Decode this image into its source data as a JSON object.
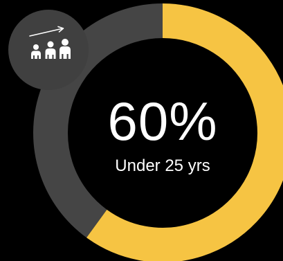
{
  "chart_data": {
    "type": "pie",
    "style": "donut",
    "value": 60,
    "display_value": "60%",
    "label": "Under 25 yrs",
    "slices": [
      {
        "value": 60,
        "color": "#F6C443"
      },
      {
        "value": 40,
        "color": "#454545"
      }
    ]
  },
  "colors": {
    "background": "#000000",
    "accent": "#F6C443",
    "remainder": "#454545",
    "icon_badge": "#404040",
    "text": "#ffffff"
  },
  "icon": {
    "name": "group-growth-icon"
  }
}
